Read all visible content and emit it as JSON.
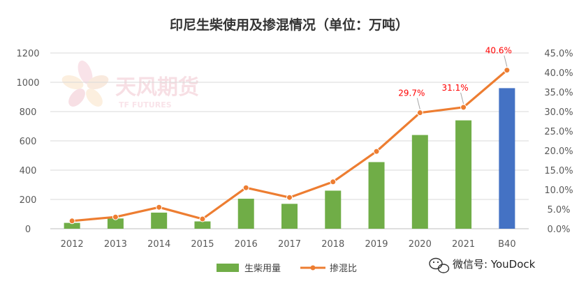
{
  "watermark": {
    "brand": "天风期货",
    "sub": "TF FUTURES"
  },
  "footer": {
    "wechat": "微信号: YouDock"
  },
  "chart_data": {
    "type": "bar+line",
    "title": "印尼生柴使用及掺混情况（单位：万吨）",
    "categories": [
      "2012",
      "2013",
      "2014",
      "2015",
      "2016",
      "2017",
      "2018",
      "2019",
      "2020",
      "2021",
      "B40"
    ],
    "y_left": {
      "min": 0,
      "max": 1200,
      "step": 200,
      "ticks": [
        "0",
        "200",
        "400",
        "600",
        "800",
        "1000",
        "1200"
      ]
    },
    "y_right": {
      "min": 0,
      "max": 45,
      "step": 5,
      "ticks": [
        "0.0%",
        "5.0%",
        "10.0%",
        "15.0%",
        "20.0%",
        "25.0%",
        "30.0%",
        "35.0%",
        "40.0%",
        "45.0%"
      ]
    },
    "grid": true,
    "legend_position": "bottom",
    "series": [
      {
        "name": "生柴用量",
        "type": "bar",
        "axis": "left",
        "values": [
          40,
          70,
          110,
          50,
          205,
          170,
          260,
          455,
          640,
          740,
          960
        ],
        "color": "#70ad47",
        "highlight_color": "#4472c4",
        "highlight_index": 10
      },
      {
        "name": "掺混比",
        "type": "line",
        "axis": "right",
        "values": [
          2.0,
          3.0,
          5.5,
          2.5,
          10.5,
          8.0,
          12.0,
          19.8,
          29.7,
          31.1,
          40.6
        ],
        "color": "#ed7d31"
      }
    ],
    "data_labels": [
      {
        "index": 8,
        "text": "29.7%"
      },
      {
        "index": 9,
        "text": "31.1%"
      },
      {
        "index": 10,
        "text": "40.6%"
      }
    ]
  }
}
